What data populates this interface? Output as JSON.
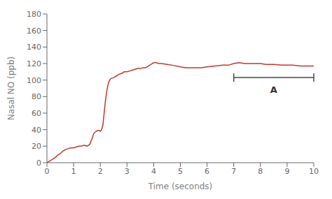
{
  "chart_data": {
    "type": "line",
    "xlabel": "Time (seconds)",
    "ylabel": "Nasal NO (ppb)",
    "xlim": [
      0,
      10
    ],
    "ylim": [
      0,
      180
    ],
    "xticks": [
      0,
      1,
      2,
      3,
      4,
      5,
      6,
      7,
      8,
      9,
      10
    ],
    "yticks": [
      0,
      20,
      40,
      60,
      80,
      100,
      120,
      140,
      160,
      180
    ],
    "color": "#c0392b",
    "grid": false,
    "x": [
      0,
      0.05,
      0.1,
      0.2,
      0.3,
      0.4,
      0.5,
      0.6,
      0.7,
      0.8,
      0.9,
      1.0,
      1.1,
      1.2,
      1.3,
      1.4,
      1.5,
      1.6,
      1.65,
      1.7,
      1.75,
      1.8,
      1.85,
      1.9,
      1.95,
      2.0,
      2.05,
      2.1,
      2.15,
      2.2,
      2.25,
      2.3,
      2.35,
      2.4,
      2.5,
      2.6,
      2.7,
      2.8,
      2.9,
      3.0,
      3.1,
      3.2,
      3.3,
      3.4,
      3.5,
      3.6,
      3.7,
      3.8,
      3.9,
      4.0,
      4.1,
      4.2,
      4.3,
      4.5,
      4.7,
      5.0,
      5.2,
      5.5,
      5.8,
      6.0,
      6.3,
      6.6,
      6.8,
      7.0,
      7.2,
      7.4,
      7.6,
      7.8,
      8.0,
      8.2,
      8.5,
      8.8,
      9.0,
      9.2,
      9.5,
      9.8,
      10.0
    ],
    "values": [
      0,
      1,
      2,
      4,
      6,
      9,
      11,
      14,
      16,
      17,
      18,
      18,
      19,
      20,
      20,
      21,
      20,
      22,
      26,
      30,
      35,
      37,
      38,
      39,
      39,
      38,
      40,
      46,
      62,
      77,
      88,
      96,
      100,
      102,
      103,
      105,
      107,
      108,
      110,
      110,
      111,
      112,
      113,
      114,
      114,
      115,
      115,
      117,
      119,
      121,
      121,
      120,
      120,
      119,
      118,
      116,
      115,
      115,
      115,
      116,
      117,
      118,
      118,
      120,
      121,
      120,
      120,
      120,
      120,
      119,
      119,
      118,
      118,
      118,
      117,
      117,
      117
    ],
    "annotation": {
      "label": "A",
      "x_start": 7.0,
      "x_end": 10.0,
      "y": 103,
      "text_y": 88
    }
  }
}
